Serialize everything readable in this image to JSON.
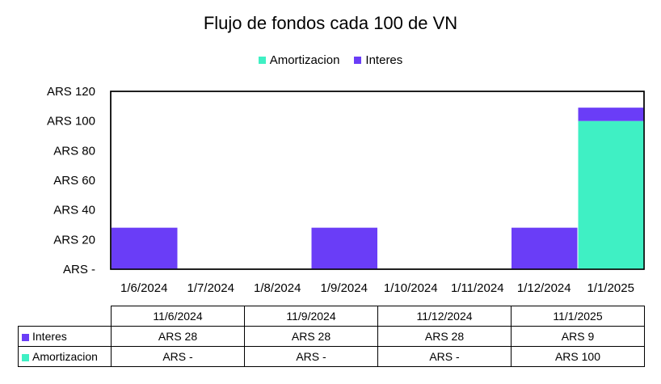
{
  "chart_data": {
    "type": "bar",
    "stacked": true,
    "title": "Flujo de fondos cada 100 de VN",
    "categories": [
      "1/6/2024",
      "1/7/2024",
      "1/8/2024",
      "1/9/2024",
      "1/10/2024",
      "1/11/2024",
      "1/12/2024",
      "1/1/2025"
    ],
    "series": [
      {
        "name": "Interes",
        "color": "#6a3df7",
        "values": [
          28,
          0,
          0,
          28,
          0,
          0,
          28,
          9
        ]
      },
      {
        "name": "Amortizacion",
        "color": "#3ff0c4",
        "values": [
          0,
          0,
          0,
          0,
          0,
          0,
          0,
          100
        ]
      }
    ],
    "legend_order": [
      "Amortizacion",
      "Interes"
    ],
    "legend_position": "top",
    "ylim": [
      0,
      120
    ],
    "yticks": [
      0,
      20,
      40,
      60,
      80,
      100,
      120
    ],
    "ytick_labels": [
      "ARS -",
      "ARS 20",
      "ARS 40",
      "ARS 60",
      "ARS 80",
      "ARS 100",
      "ARS 120"
    ],
    "grid": false
  },
  "table": {
    "dates": [
      "11/6/2024",
      "11/9/2024",
      "11/12/2024",
      "11/1/2025"
    ],
    "rows": [
      {
        "label": "Interes",
        "color": "#6a3df7",
        "cells": [
          "ARS 28",
          "ARS 28",
          "ARS 28",
          "ARS 9"
        ]
      },
      {
        "label": "Amortizacion",
        "color": "#3ff0c4",
        "cells": [
          "ARS -",
          "ARS -",
          "ARS -",
          "ARS 100"
        ]
      }
    ]
  }
}
